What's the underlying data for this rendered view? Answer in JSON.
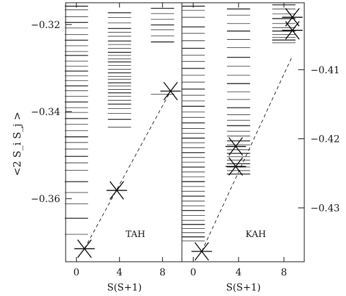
{
  "chart_data": [
    {
      "type": "scatter",
      "panel_label": "TAH",
      "xlabel": "S(S+1)",
      "ylabel": "<2 S_i S_j >",
      "xlim": [
        -1,
        9.8
      ],
      "ylim": [
        -0.3745,
        -0.315
      ],
      "x_ticks": [
        0,
        4,
        8
      ],
      "y_ticks": [
        -0.32,
        -0.34,
        -0.36
      ],
      "y_tick_labels": [
        "−0.32",
        "−0.34",
        "−0.36"
      ],
      "levels": [
        {
          "x": 0,
          "ys": [
            -0.3158,
            -0.3166,
            -0.3182,
            -0.3195,
            -0.3208,
            -0.3223,
            -0.3236,
            -0.3249,
            -0.3262,
            -0.3271,
            -0.3284,
            -0.3296,
            -0.3307,
            -0.3318,
            -0.3329,
            -0.3341,
            -0.3352,
            -0.3365,
            -0.3378,
            -0.3391,
            -0.3402,
            -0.3416,
            -0.3429,
            -0.3444,
            -0.3458,
            -0.3471,
            -0.3486,
            -0.3503,
            -0.3518,
            -0.3535,
            -0.3561,
            -0.3586,
            -0.3612,
            -0.3645,
            -0.3682
          ]
        },
        {
          "x": 4,
          "ys": [
            -0.3173,
            -0.3184,
            -0.3196,
            -0.3209,
            -0.3218,
            -0.3227,
            -0.3238,
            -0.3246,
            -0.3255,
            -0.3264,
            -0.3271,
            -0.3279,
            -0.3286,
            -0.3294,
            -0.3303,
            -0.3311,
            -0.3319,
            -0.3326,
            -0.3334,
            -0.3341,
            -0.3349,
            -0.3357,
            -0.3365,
            -0.3374,
            -0.3383,
            -0.3393,
            -0.3404,
            -0.3418,
            -0.3436
          ]
        },
        {
          "x": 8,
          "ys": [
            -0.3163,
            -0.3175,
            -0.3188,
            -0.3201,
            -0.3212,
            -0.3226,
            -0.324,
            -0.336
          ]
        }
      ],
      "ground_states": [
        {
          "x": 0.75,
          "y": -0.3715
        },
        {
          "x": 3.75,
          "y": -0.3581
        },
        {
          "x": 8.75,
          "y": -0.3353
        }
      ],
      "dashed_line": {
        "x": [
          0.75,
          8.75
        ],
        "y": [
          -0.3715,
          -0.3353
        ]
      }
    },
    {
      "type": "scatter",
      "panel_label": "KAH",
      "xlabel": "S(S+1)",
      "ylabel": "",
      "xlim": [
        -1,
        9.8
      ],
      "ylim": [
        -0.4378,
        -0.4003
      ],
      "x_ticks": [
        0,
        4,
        8
      ],
      "y_ticks": [
        -0.41,
        -0.42,
        -0.43
      ],
      "y_tick_labels": [
        "−0.41",
        "−0.42",
        "−0.43"
      ],
      "levels": [
        {
          "x": 0,
          "ys": [
            -0.4008,
            -0.4014,
            -0.4024,
            -0.4038,
            -0.4047,
            -0.4058,
            -0.4069,
            -0.4079,
            -0.4088,
            -0.4098,
            -0.4108,
            -0.4118,
            -0.4128,
            -0.4137,
            -0.4145,
            -0.4153,
            -0.4161,
            -0.4169,
            -0.4177,
            -0.4185,
            -0.4192,
            -0.4199,
            -0.4206,
            -0.4213,
            -0.422,
            -0.4227,
            -0.4234,
            -0.4241,
            -0.4248,
            -0.4255,
            -0.4262,
            -0.4269,
            -0.4276,
            -0.4283,
            -0.429,
            -0.4297,
            -0.4304,
            -0.4311,
            -0.4318,
            -0.4324,
            -0.433,
            -0.4336,
            -0.4342,
            -0.4348
          ]
        },
        {
          "x": 4,
          "ys": [
            -0.4012,
            -0.4021,
            -0.4033,
            -0.4044,
            -0.4056,
            -0.4068,
            -0.4082,
            -0.4095,
            -0.4108,
            -0.412,
            -0.4132,
            -0.4143,
            -0.4155,
            -0.4165,
            -0.4173,
            -0.4181,
            -0.4189,
            -0.4196,
            -0.4203,
            -0.4209,
            -0.4216,
            -0.4221,
            -0.4226,
            -0.4231,
            -0.4236,
            -0.4241,
            -0.4246,
            -0.4251
          ]
        },
        {
          "x": 8,
          "ys": [
            -0.4006,
            -0.4012,
            -0.4019,
            -0.4026,
            -0.4033,
            -0.4039,
            -0.4044,
            -0.4049,
            -0.4053,
            -0.4057,
            -0.4061
          ]
        }
      ],
      "ground_states": [
        {
          "x": 0.75,
          "y": -0.4363
        },
        {
          "x": 3.75,
          "y": -0.4211
        },
        {
          "x": 3.75,
          "y": -0.424
        },
        {
          "x": 8.75,
          "y": -0.4024
        },
        {
          "x": 8.75,
          "y": -0.4043
        }
      ],
      "dashed_line": {
        "x": [
          0.75,
          8.75
        ],
        "y": [
          -0.4363,
          -0.408
        ]
      }
    }
  ]
}
